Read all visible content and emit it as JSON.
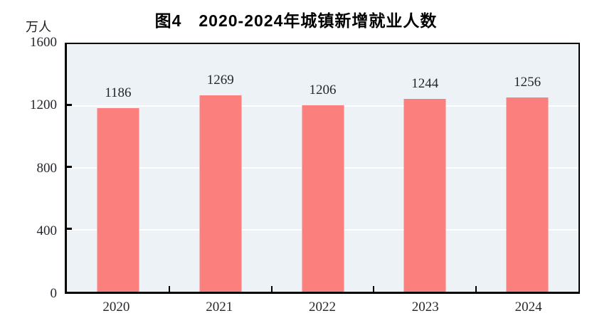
{
  "chart_data": {
    "type": "bar",
    "title": "图4　2020-2024年城镇新增就业人数",
    "ylabel": "万人",
    "xlabel": "",
    "categories": [
      "2020",
      "2021",
      "2022",
      "2023",
      "2024"
    ],
    "values": [
      1186,
      1269,
      1206,
      1244,
      1256
    ],
    "ylim": [
      0,
      1600
    ],
    "y_ticks": [
      0,
      400,
      800,
      1200,
      1600
    ],
    "value_labels_shown": true,
    "legend": "none",
    "grid": "horizontal white gridlines at y ticks",
    "colors": {
      "bar": "#FA7F7D",
      "plot_background": "#ECF2F6",
      "page_background": "#FFFFFF",
      "axis_frame": "#000000",
      "gridline": "#FFFFFF",
      "text": "#26262E",
      "title": "#000000"
    }
  }
}
